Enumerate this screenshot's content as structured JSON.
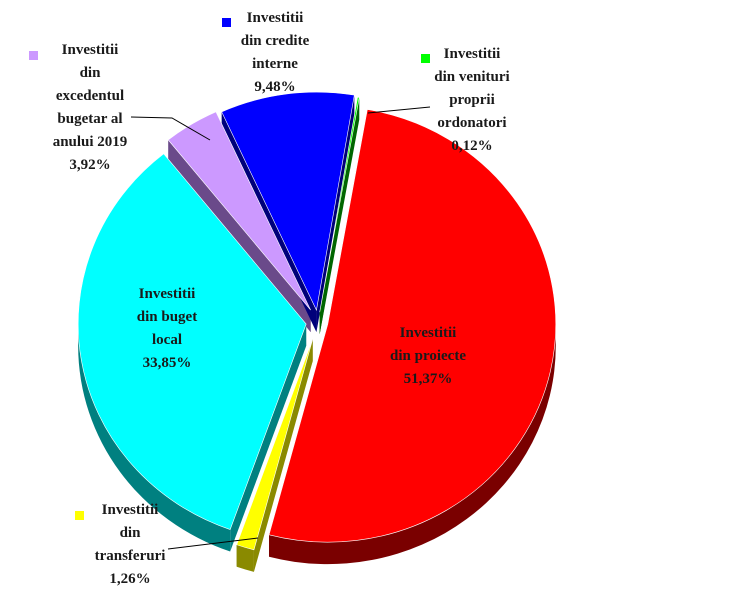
{
  "chart_data": {
    "type": "pie",
    "title": "",
    "slices": [
      {
        "lines": [
          "Investitii",
          "din proiecte"
        ],
        "value_label": "51,37%",
        "value": 51.37,
        "color": "#ff0000",
        "side_color": "#7a0000",
        "legend_marker": false
      },
      {
        "lines": [
          "Investitii",
          "din",
          "transferuri"
        ],
        "value_label": "1,26%",
        "value": 1.26,
        "color": "#ffff00",
        "side_color": "#8a8a00",
        "legend_marker": true
      },
      {
        "lines": [
          "Investitii",
          "din buget",
          "local"
        ],
        "value_label": "33,85%",
        "value": 33.85,
        "color": "#00ffff",
        "side_color": "#008080",
        "legend_marker": false
      },
      {
        "lines": [
          "Investitii",
          "din",
          "excedentul",
          "bugetar al",
          "anului 2019"
        ],
        "value_label": "3,92%",
        "value": 3.92,
        "color": "#cc99ff",
        "side_color": "#6a4a8a",
        "legend_marker": true
      },
      {
        "lines": [
          "Investitii",
          "din credite",
          "interne"
        ],
        "value_label": "9,48%",
        "value": 9.48,
        "color": "#0000ff",
        "side_color": "#00007a",
        "legend_marker": true
      },
      {
        "lines": [
          "Investitii",
          "din venituri",
          "proprii",
          "ordonatori"
        ],
        "value_label": "0,12%",
        "value": 0.12,
        "color": "#00ff00",
        "side_color": "#006600",
        "legend_marker": true
      }
    ]
  }
}
